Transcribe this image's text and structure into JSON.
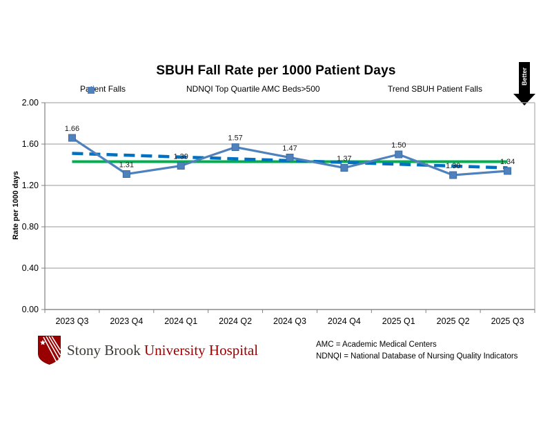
{
  "title": "SBUH Fall Rate per 1000 Patient Days",
  "better_arrow": {
    "label": "Better"
  },
  "legend": {
    "items": [
      {
        "label": "Patient Falls",
        "color": "#4F81BD",
        "style": "line-with-square-marker"
      },
      {
        "label": "NDNQI Top Quartile AMC Beds>500",
        "color": "#00B050",
        "style": "solid-line"
      },
      {
        "label": "Trend SBUH Patient Falls",
        "color": "#0070C0",
        "style": "dashed-line"
      }
    ]
  },
  "chart_data": {
    "type": "line",
    "title": "SBUH Fall Rate per 1000 Patient Days",
    "xlabel": "",
    "ylabel": "Rate per 1000 days",
    "ylim": [
      0.0,
      2.0
    ],
    "ytick_step": 0.4,
    "ytick_labels": [
      "0.00",
      "0.40",
      "0.80",
      "1.20",
      "1.60",
      "2.00"
    ],
    "grid": true,
    "legend_position": "top",
    "categories": [
      "2023 Q3",
      "2023 Q4",
      "2024 Q1",
      "2024 Q2",
      "2024 Q3",
      "2024 Q4",
      "2025 Q1",
      "2025 Q2",
      "2025 Q3"
    ],
    "series": [
      {
        "name": "Patient Falls",
        "type": "line-markers",
        "color": "#4F81BD",
        "values": [
          1.66,
          1.31,
          1.39,
          1.57,
          1.47,
          1.37,
          1.5,
          1.3,
          1.34
        ],
        "data_labels": [
          "1.66",
          "1.31",
          "1.39",
          "1.57",
          "1.47",
          "1.37",
          "1.50",
          "1.30",
          "1.34"
        ]
      },
      {
        "name": "NDNQI Top Quartile AMC Beds>500",
        "type": "benchmark-line",
        "color": "#00B050",
        "value": 1.43
      },
      {
        "name": "Trend SBUH Patient Falls",
        "type": "trend-line-dashed",
        "color": "#0070C0",
        "start_value": 1.51,
        "end_value": 1.37
      }
    ]
  },
  "footnotes": [
    "AMC = Academic Medical Centers",
    "NDNQI = National Database of Nursing Quality Indicators"
  ],
  "logo": {
    "name_part1": "Stony Brook",
    "name_part2": "University Hospital",
    "shield_color": "#990000"
  },
  "colors": {
    "gridline": "#ACACAC",
    "axis": "#808080",
    "data_label": "#1a1a1a"
  }
}
